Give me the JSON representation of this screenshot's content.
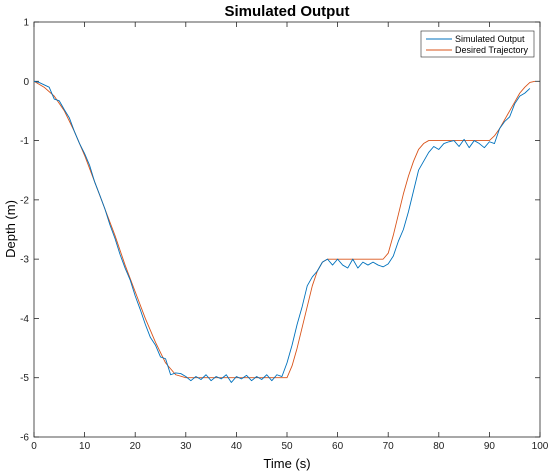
{
  "chart_data": {
    "type": "line",
    "title": "Simulated Output",
    "xlabel": "Time (s)",
    "ylabel": "Depth (m)",
    "xlim": [
      0,
      100
    ],
    "ylim": [
      -6,
      1
    ],
    "xticks": [
      0,
      10,
      20,
      30,
      40,
      50,
      60,
      70,
      80,
      90,
      100
    ],
    "yticks": [
      1,
      0,
      -1,
      -2,
      -3,
      -4,
      -5,
      -6
    ],
    "grid": false,
    "legend_position": "top-right",
    "series": [
      {
        "name": "Simulated Output",
        "color": "#0072BD",
        "x": [
          0,
          1,
          2,
          3,
          4,
          5,
          6,
          7,
          8,
          9,
          10,
          11,
          12,
          13,
          14,
          15,
          16,
          17,
          18,
          19,
          20,
          21,
          22,
          23,
          24,
          25,
          26,
          27,
          28,
          29,
          30,
          31,
          32,
          33,
          34,
          35,
          36,
          37,
          38,
          39,
          40,
          41,
          42,
          43,
          44,
          45,
          46,
          47,
          48,
          49,
          50,
          51,
          52,
          53,
          54,
          55,
          56,
          57,
          58,
          59,
          60,
          61,
          62,
          63,
          64,
          65,
          66,
          67,
          68,
          69,
          70,
          71,
          72,
          73,
          74,
          75,
          76,
          77,
          78,
          79,
          80,
          81,
          82,
          83,
          84,
          85,
          86,
          87,
          88,
          89,
          90,
          91,
          92,
          93,
          94,
          95,
          96,
          97,
          98
        ],
        "values": [
          0,
          -0.02,
          -0.06,
          -0.1,
          -0.3,
          -0.33,
          -0.48,
          -0.62,
          -0.85,
          -1.05,
          -1.22,
          -1.42,
          -1.7,
          -1.92,
          -2.15,
          -2.42,
          -2.65,
          -2.92,
          -3.15,
          -3.35,
          -3.62,
          -3.85,
          -4.1,
          -4.32,
          -4.45,
          -4.65,
          -4.68,
          -4.95,
          -4.92,
          -4.93,
          -4.98,
          -5.05,
          -4.98,
          -5.03,
          -4.95,
          -5.05,
          -4.98,
          -5.02,
          -4.95,
          -5.08,
          -4.98,
          -5.02,
          -4.96,
          -5.05,
          -4.98,
          -5.03,
          -4.95,
          -5.05,
          -4.95,
          -4.98,
          -4.75,
          -4.45,
          -4.1,
          -3.8,
          -3.45,
          -3.3,
          -3.2,
          -3.05,
          -3.0,
          -3.1,
          -3.0,
          -3.1,
          -3.15,
          -3.0,
          -3.15,
          -3.05,
          -3.1,
          -3.05,
          -3.1,
          -3.13,
          -3.08,
          -2.95,
          -2.7,
          -2.5,
          -2.2,
          -1.85,
          -1.5,
          -1.35,
          -1.2,
          -1.1,
          -1.15,
          -1.05,
          -1.02,
          -1.0,
          -1.1,
          -0.98,
          -1.12,
          -1.0,
          -1.05,
          -1.12,
          -1.02,
          -1.05,
          -0.8,
          -0.68,
          -0.6,
          -0.38,
          -0.25,
          -0.2,
          -0.12
        ]
      },
      {
        "name": "Desired Trajectory",
        "color": "#D95319",
        "x": [
          0,
          2,
          4,
          6,
          8,
          10,
          12,
          14,
          16,
          18,
          20,
          22,
          24,
          26,
          28,
          30,
          35,
          40,
          45,
          50,
          51,
          52,
          53,
          54,
          55,
          56,
          57,
          58,
          60,
          65,
          69,
          70,
          71,
          72,
          73,
          74,
          75,
          76,
          77,
          78,
          80,
          85,
          90,
          91,
          92,
          93,
          94,
          95,
          96,
          97,
          98,
          99
        ],
        "values": [
          0,
          -0.1,
          -0.25,
          -0.5,
          -0.85,
          -1.25,
          -1.7,
          -2.15,
          -2.6,
          -3.1,
          -3.55,
          -4.0,
          -4.4,
          -4.75,
          -4.95,
          -5.0,
          -5.0,
          -5.0,
          -5.0,
          -5.0,
          -4.8,
          -4.5,
          -4.15,
          -3.8,
          -3.45,
          -3.2,
          -3.05,
          -3.0,
          -3.0,
          -3.0,
          -3.0,
          -2.9,
          -2.6,
          -2.25,
          -1.9,
          -1.6,
          -1.35,
          -1.15,
          -1.05,
          -1.0,
          -1.0,
          -1.0,
          -1.0,
          -0.92,
          -0.8,
          -0.65,
          -0.5,
          -0.35,
          -0.2,
          -0.1,
          -0.02,
          0
        ]
      }
    ]
  }
}
